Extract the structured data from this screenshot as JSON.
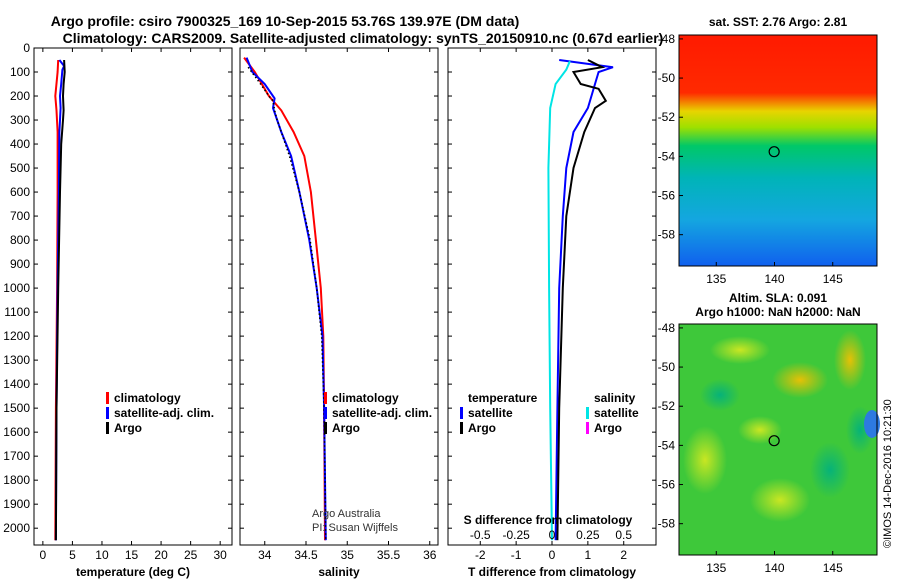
{
  "header": {
    "title_line1": "Argo profile: csiro 7900325_169 10-Sep-2015 53.76S 139.97E (DM data)",
    "title_line2": "Climatology: CARS2009. Satellite-adjusted climatology: synTS_20150910.nc (0.67d earlier)"
  },
  "chart_data": [
    {
      "type": "line",
      "panel": "temperature",
      "xlabel": "temperature (deg C)",
      "xlim": [
        -1.5,
        32
      ],
      "xticks": [
        0,
        5,
        10,
        15,
        20,
        25,
        30
      ],
      "ylim": [
        2070,
        0
      ],
      "yticks": [
        0,
        100,
        200,
        300,
        400,
        500,
        600,
        700,
        800,
        900,
        1000,
        1100,
        1200,
        1300,
        1400,
        1500,
        1600,
        1700,
        1800,
        1900,
        2000
      ],
      "legend": {
        "position": "lower-right",
        "items": [
          "climatology",
          "satellite-adj. clim.",
          "Argo"
        ]
      },
      "series": [
        {
          "name": "climatology",
          "color": "#ff0000",
          "points": [
            [
              2.6,
              50
            ],
            [
              2.5,
              100
            ],
            [
              2.1,
              200
            ],
            [
              2.3,
              260
            ],
            [
              2.5,
              350
            ],
            [
              2.5,
              600
            ],
            [
              2.4,
              1000
            ],
            [
              2.2,
              1500
            ],
            [
              2.1,
              2050
            ]
          ]
        },
        {
          "name": "satellite-adj. clim.",
          "color": "#0000ff",
          "points": [
            [
              2.8,
              50
            ],
            [
              3.6,
              75
            ],
            [
              3.3,
              90
            ],
            [
              3.1,
              150
            ],
            [
              2.9,
              200
            ],
            [
              3.0,
              250
            ],
            [
              2.8,
              350
            ],
            [
              2.7,
              600
            ],
            [
              2.5,
              1000
            ],
            [
              2.3,
              1500
            ],
            [
              2.2,
              2050
            ]
          ]
        },
        {
          "name": "Argo",
          "color": "#000000",
          "points": [
            [
              3.6,
              50
            ],
            [
              3.7,
              100
            ],
            [
              3.5,
              150
            ],
            [
              3.4,
              200
            ],
            [
              3.5,
              260
            ],
            [
              3.4,
              300
            ],
            [
              3.1,
              400
            ],
            [
              2.9,
              600
            ],
            [
              2.6,
              1000
            ],
            [
              2.3,
              1500
            ],
            [
              2.2,
              2050
            ]
          ]
        }
      ]
    },
    {
      "type": "line",
      "panel": "salinity",
      "xlabel": "salinity",
      "xlim": [
        33.7,
        36.1
      ],
      "xticks": [
        34,
        34.5,
        35,
        35.5,
        36
      ],
      "ylim": [
        2070,
        0
      ],
      "legend": {
        "position": "lower-right",
        "items": [
          "climatology",
          "satellite-adj. clim.",
          "Argo"
        ]
      },
      "annotations": [
        "Argo Australia",
        "PI: Susan Wijffels"
      ],
      "series": [
        {
          "name": "climatology",
          "color": "#ff0000",
          "points": [
            [
              33.75,
              40
            ],
            [
              33.88,
              100
            ],
            [
              34.05,
              200
            ],
            [
              34.2,
              260
            ],
            [
              34.35,
              350
            ],
            [
              34.48,
              450
            ],
            [
              34.56,
              600
            ],
            [
              34.62,
              800
            ],
            [
              34.68,
              1000
            ],
            [
              34.71,
              1200
            ],
            [
              34.72,
              1500
            ],
            [
              34.73,
              2050
            ]
          ]
        },
        {
          "name": "satellite-adj. clim.",
          "color": "#0000ff",
          "points": [
            [
              33.78,
              40
            ],
            [
              33.85,
              100
            ],
            [
              34.0,
              150
            ],
            [
              34.12,
              210
            ],
            [
              34.1,
              250
            ],
            [
              34.2,
              350
            ],
            [
              34.32,
              450
            ],
            [
              34.42,
              600
            ],
            [
              34.54,
              800
            ],
            [
              34.63,
              1000
            ],
            [
              34.7,
              1200
            ],
            [
              34.72,
              1500
            ],
            [
              34.74,
              2050
            ]
          ]
        },
        {
          "name": "Argo",
          "color": "#000000",
          "dotted": true,
          "points": [
            [
              33.8,
              80
            ],
            [
              33.95,
              150
            ],
            [
              34.05,
              200
            ],
            [
              34.1,
              220
            ],
            [
              34.12,
              260
            ],
            [
              34.15,
              300
            ],
            [
              34.2,
              350
            ],
            [
              34.3,
              450
            ],
            [
              34.42,
              600
            ],
            [
              34.55,
              800
            ],
            [
              34.63,
              1000
            ],
            [
              34.69,
              1200
            ],
            [
              34.72,
              1500
            ],
            [
              34.74,
              2050
            ]
          ]
        }
      ]
    },
    {
      "type": "line",
      "panel": "difference",
      "xlabel": "T difference from climatology",
      "xlabel_top": "S difference from climatology",
      "xlim": [
        -2.9,
        2.9
      ],
      "xticks": [
        -2,
        -1,
        0,
        1,
        2
      ],
      "xticks_top_labels": [
        "-0.5",
        "-0.25",
        "0",
        "0.25",
        "0.5"
      ],
      "ylim": [
        2070,
        0
      ],
      "legend_left": {
        "heading": "temperature",
        "items": [
          "satellite",
          "Argo"
        ]
      },
      "legend_right": {
        "heading": "salinity",
        "items": [
          "satellite",
          "Argo"
        ]
      },
      "series": [
        {
          "name": "temperature satellite",
          "color": "#0000ff",
          "points": [
            [
              0.2,
              50
            ],
            [
              1.7,
              80
            ],
            [
              1.3,
              100
            ],
            [
              1.2,
              150
            ],
            [
              1.0,
              250
            ],
            [
              0.6,
              350
            ],
            [
              0.4,
              500
            ],
            [
              0.3,
              700
            ],
            [
              0.2,
              1000
            ],
            [
              0.15,
              1500
            ],
            [
              0.1,
              2050
            ]
          ]
        },
        {
          "name": "temperature Argo",
          "color": "#000000",
          "points": [
            [
              1.0,
              50
            ],
            [
              1.4,
              80
            ],
            [
              0.6,
              100
            ],
            [
              0.8,
              150
            ],
            [
              1.3,
              170
            ],
            [
              1.5,
              220
            ],
            [
              1.2,
              250
            ],
            [
              0.9,
              350
            ],
            [
              0.6,
              500
            ],
            [
              0.4,
              700
            ],
            [
              0.3,
              1000
            ],
            [
              0.2,
              1500
            ],
            [
              0.15,
              2050
            ]
          ]
        },
        {
          "name": "salinity satellite",
          "color": "#00e5e5",
          "points": [
            [
              0.5,
              55
            ],
            [
              0.4,
              90
            ],
            [
              0.1,
              150
            ],
            [
              -0.05,
              250
            ],
            [
              -0.1,
              500
            ],
            [
              -0.08,
              1000
            ],
            [
              -0.05,
              1500
            ],
            [
              0.0,
              2050
            ]
          ]
        },
        {
          "name": "salinity Argo",
          "color": "#ff00ff",
          "points": []
        }
      ]
    }
  ],
  "maps": [
    {
      "name": "sst",
      "title": "sat. SST: 2.76 Argo: 2.81",
      "yticks": [
        "-48",
        "-50",
        "-52",
        "-54",
        "-56",
        "-58"
      ],
      "xticks": [
        "135",
        "140",
        "145"
      ],
      "ylim": [
        -59.6,
        -47.8
      ],
      "xlim": [
        131.8,
        148.8
      ],
      "marker": {
        "lat": -53.76,
        "lon": 139.97
      }
    },
    {
      "name": "sla",
      "title": "Altim. SLA: 0.091",
      "subtitle": "Argo h1000: NaN h2000: NaN",
      "yticks": [
        "-48",
        "-50",
        "-52",
        "-54",
        "-56",
        "-58"
      ],
      "xticks": [
        "135",
        "140",
        "145"
      ],
      "ylim": [
        -59.6,
        -47.8
      ],
      "xlim": [
        131.8,
        148.8
      ],
      "marker": {
        "lat": -53.76,
        "lon": 139.97
      }
    }
  ],
  "footer": {
    "credit": "©IMOS 14-Dec-2016 10:21:30"
  }
}
